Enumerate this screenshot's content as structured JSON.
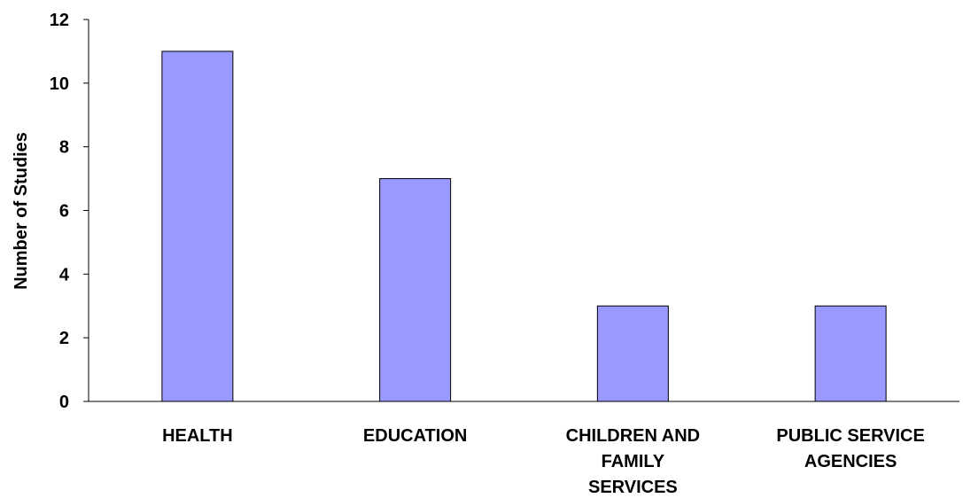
{
  "chart_data": {
    "type": "bar",
    "categories": [
      [
        "HEALTH"
      ],
      [
        "EDUCATION"
      ],
      [
        "CHILDREN AND",
        "FAMILY",
        "SERVICES"
      ],
      [
        "PUBLIC SERVICE",
        "AGENCIES"
      ]
    ],
    "values": [
      11,
      7,
      3,
      3
    ],
    "ylabel": "Number of Studies",
    "ylim": [
      0,
      12
    ],
    "yticks": [
      "0",
      "2",
      "4",
      "6",
      "8",
      "10",
      "12"
    ],
    "grid": false,
    "legend": "none",
    "bar_color": "#9999ff",
    "bar_stroke": "#000000"
  }
}
